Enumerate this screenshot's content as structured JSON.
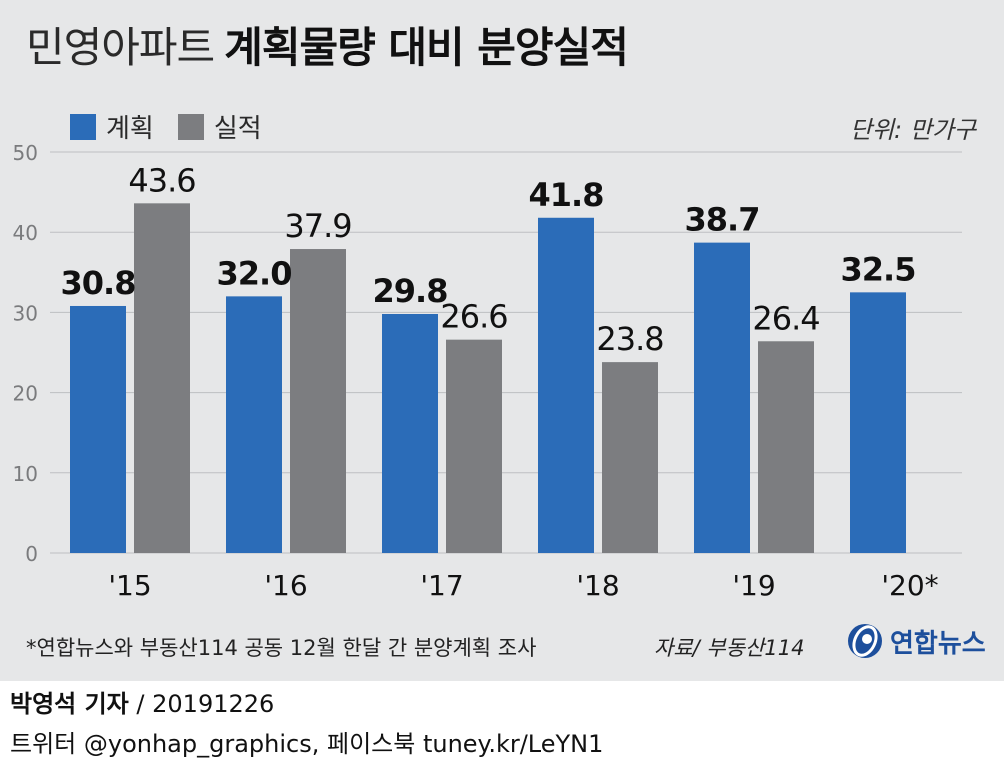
{
  "title": {
    "light": "민영아파트",
    "bold": "계획물량 대비 분양실적"
  },
  "unit_label": "단위: 만가구",
  "footnote": "*연합뉴스와 부동산114 공동 12월 한달 간 분양계획 조사",
  "source": "자료/ 부동산114",
  "logo": {
    "text": "연합뉴스",
    "icon": "yonhap-logo-icon"
  },
  "reporter": {
    "name": "박영석 기자",
    "separator": "/",
    "date": "20191226"
  },
  "social": "트위터 @yonhap_graphics, 페이스북 tuney.kr/LeYN1",
  "colors": {
    "plan": "#2b6cb8",
    "actual": "#7c7d80",
    "panel": "#e6e7e8",
    "logo": "#1d4f9c"
  },
  "chart_data": {
    "type": "bar",
    "categories": [
      "'15",
      "'16",
      "'17",
      "'18",
      "'19",
      "'20*"
    ],
    "series": [
      {
        "name": "계획",
        "values": [
          30.8,
          32.0,
          29.8,
          41.8,
          38.7,
          32.5
        ]
      },
      {
        "name": "실적",
        "values": [
          43.6,
          37.9,
          26.6,
          23.8,
          26.4,
          null
        ]
      }
    ],
    "y_ticks": [
      0,
      10,
      20,
      30,
      40,
      50
    ],
    "ylim": [
      0,
      50
    ],
    "grid": true,
    "legend": "top-left",
    "xlabel": "",
    "ylabel": ""
  }
}
